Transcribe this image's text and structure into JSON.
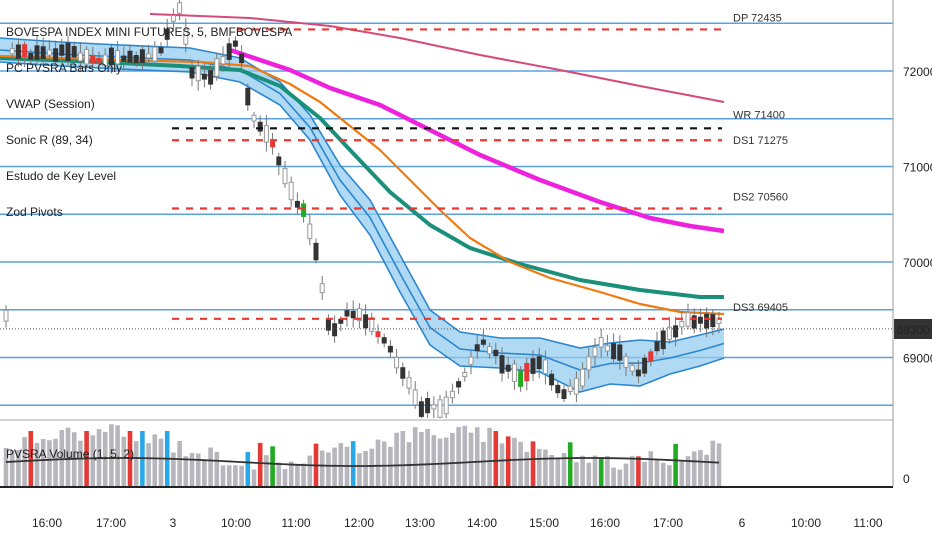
{
  "chart_data": {
    "type": "candlestick",
    "symbol_title": "BOVESPA INDEX MINI FUTURES, 5, BMFBOVESPA",
    "indicators": [
      "PC PVSRA Bars Only",
      "VWAP (Session)",
      "Sonic R (89, 34)",
      "Estudo de Key Level",
      "Zod Pivots"
    ],
    "volume_title": "PVSRA Volume (1, 5, 2)",
    "volume_zero_label": "0",
    "last_price_label": "69300",
    "price_axis_labels": [
      "72000",
      "71000",
      "70000",
      "69000"
    ],
    "time_axis_labels": [
      "16:00",
      "17:00",
      "3",
      "10:00",
      "11:00",
      "12:00",
      "13:00",
      "14:00",
      "15:00",
      "16:00",
      "17:00",
      "6",
      "10:00",
      "11:00"
    ],
    "level_labels": [
      {
        "text": "DP 72435",
        "price": 72435
      },
      {
        "text": "WR 71400",
        "price": 71400
      },
      {
        "text": "DS1 71275",
        "price": 71275
      },
      {
        "text": "DS2 70560",
        "price": 70560
      },
      {
        "text": "DS3 69405",
        "price": 69405
      }
    ],
    "horizontal_lines": [
      72500,
      72000,
      71500,
      71000,
      70500,
      70000,
      69500,
      69000,
      68500
    ],
    "dashed_levels": [
      {
        "price": 72435,
        "color": "#e53935"
      },
      {
        "price": 71400,
        "color": "#111111"
      },
      {
        "price": 71275,
        "color": "#e53935"
      },
      {
        "price": 70560,
        "color": "#e53935"
      },
      {
        "price": 69405,
        "color": "#e53935"
      }
    ],
    "current_price": 69300,
    "y_range": [
      68400,
      72800
    ],
    "colors": {
      "grid_line": "#5aa0e0",
      "band_fill": "#8fcaf0",
      "band_line": "#2b86d0",
      "vwap": "#ee22dd",
      "sma_slow": "#1a8f7a",
      "ema_fast": "#f07a10",
      "long_ma": "#d54a78",
      "candle": "#333333",
      "climax_up": "#22aa22",
      "climax_down": "#e53935",
      "volume_bar": "#b6b6bc",
      "volume_ma": "#333333"
    }
  }
}
